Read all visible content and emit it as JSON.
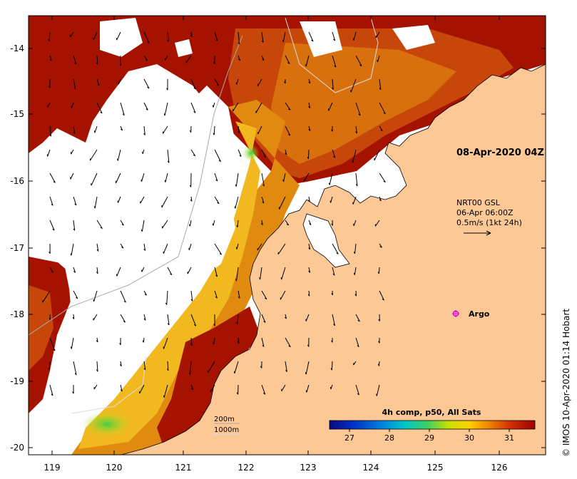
{
  "map": {
    "timestamp_label": "08-Apr-2020 04Z",
    "currents_legend": {
      "line1": "NRT00 GSL",
      "line2": "06-Apr 06:00Z",
      "line3": "0.5m/s (1kt 24h)"
    },
    "argo_label": "Argo",
    "isobath_labels": [
      "200m",
      "1000m"
    ],
    "colorbar": {
      "title": "4h comp, p50, All Sats",
      "ticks": [
        "27",
        "28",
        "29",
        "30",
        "31"
      ]
    },
    "x_ticks": [
      "119",
      "120",
      "121",
      "122",
      "123",
      "124",
      "125",
      "126"
    ],
    "y_ticks": [
      "-14",
      "-15",
      "-16",
      "-17",
      "-18",
      "-19",
      "-20"
    ],
    "credit": "© IMOS 10-Apr-2020 01:14 Hobart",
    "colors": {
      "land": "#fcc896",
      "warm_sst": "#a31000",
      "mid_sst": "#d0550a",
      "cool_sst": "#f0b020",
      "cloud": "#ffffff",
      "argo_marker": "#dd00dd"
    },
    "icons": [
      "argo-float-icon",
      "current-vector-arrow"
    ]
  }
}
